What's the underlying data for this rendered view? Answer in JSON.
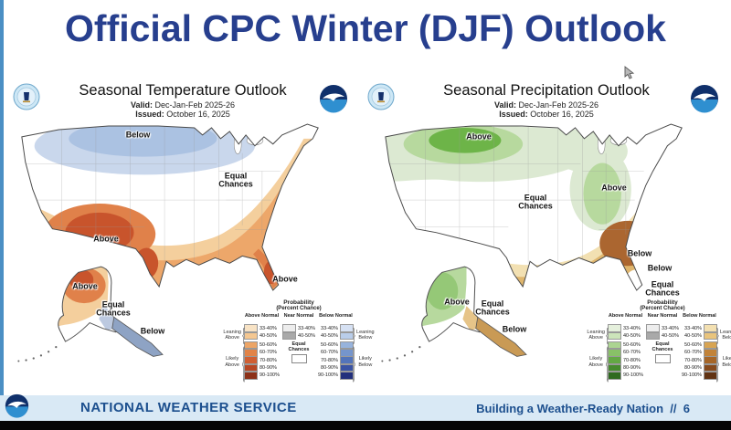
{
  "title": "Official CPC Winter (DJF) Outlook",
  "maps": {
    "temperature": {
      "title": "Seasonal Temperature Outlook",
      "valid_label": "Valid:",
      "valid": "Dec-Jan-Feb 2025-26",
      "issued_label": "Issued:",
      "issued": "October 16, 2025",
      "region_labels": {
        "north": "Below",
        "central": "Equal Chances",
        "southwest": "Above",
        "florida": "Above"
      },
      "alaska": {
        "west": "Above",
        "central": "Equal Chances",
        "southeast": "Below"
      }
    },
    "precipitation": {
      "title": "Seasonal Precipitation Outlook",
      "valid_label": "Valid:",
      "valid": "Dec-Jan-Feb 2025-26",
      "issued_label": "Issued:",
      "issued": "October 16, 2025",
      "region_labels": {
        "northwest": "Above",
        "ohio_valley": "Above",
        "central": "Equal Chances",
        "southeast": "Below",
        "north_florida": "Below",
        "south_florida": "Equal Chances"
      },
      "alaska": {
        "west": "Above",
        "central": "Equal Chances",
        "southeast": "Below"
      }
    }
  },
  "legend": {
    "title": "Probability",
    "subtitle": "(Percent Chance)",
    "columns": {
      "above": "Above Normal",
      "near": "Near Normal",
      "below": "Below Normal"
    },
    "percent_labels": [
      "33-40%",
      "40-50%",
      "50-60%",
      "60-70%",
      "70-80%",
      "80-90%",
      "90-100%"
    ],
    "near_percent_labels": [
      "33-40%",
      "40-50%"
    ],
    "equal_chances": "Equal Chances",
    "left_top": "Leaning Above",
    "left_bottom": "Likely Above",
    "right_top": "Leaning Below",
    "right_bottom": "Likely Below",
    "palettes": {
      "near": [
        "#ededed",
        "#a9a9a9"
      ],
      "temperature": {
        "above": [
          "#f8e3c5",
          "#f4c791",
          "#eda566",
          "#e28347",
          "#d05f33",
          "#b74724",
          "#8c3118"
        ],
        "below": [
          "#d6e1f3",
          "#b9cdea",
          "#97b3dc",
          "#7595cc",
          "#5374ba",
          "#3a53a4",
          "#23307c"
        ]
      },
      "precipitation": {
        "above": [
          "#e5f0dc",
          "#cce4ba",
          "#abd491",
          "#88c167",
          "#63a844",
          "#468a2e",
          "#2f6a20"
        ],
        "below": [
          "#f3e0b1",
          "#e9c47c",
          "#d8a452",
          "#c28339",
          "#a66628",
          "#864a1d",
          "#613313"
        ]
      }
    }
  },
  "footer": {
    "agency": "NATIONAL WEATHER SERVICE",
    "tagline": "Building a Weather-Ready Nation",
    "separator": "//",
    "page": "6"
  },
  "colors": {
    "title_text": "#273f8e",
    "edge_line": "#4b8fc4",
    "footer_bg": "#d9e9f5",
    "footer_text": "#1c4f8e",
    "temp": {
      "blue_light": "#c9d7ec",
      "blue_mid": "#abc2e2",
      "orange_light": "#f4cf9d",
      "orange_mid": "#eda76a",
      "orange_dark": "#e0814a",
      "red": "#c8542c"
    },
    "precip": {
      "green_light": "#dce9d2",
      "green_mid": "#b7d99e",
      "green_dark": "#6db448",
      "tan_light": "#f2e0b2",
      "tan_mid": "#dfb66e",
      "brown_dark": "#ab6630"
    },
    "alaska": {
      "temp_below_fill": "#bcc9e0",
      "temp_panhandle": "#8ea3c4",
      "precip_below_fill": "#e6c488",
      "precip_panhandle": "#c99a55"
    }
  }
}
